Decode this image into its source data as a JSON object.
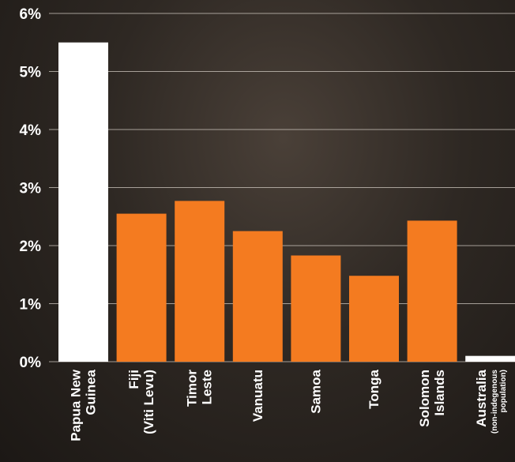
{
  "chart_data": {
    "type": "bar",
    "title": "",
    "xlabel": "",
    "ylabel": "",
    "ylim": [
      0,
      6
    ],
    "y_ticks": [
      "0%",
      "1%",
      "2%",
      "3%",
      "4%",
      "5%",
      "6%"
    ],
    "grid": true,
    "categories": [
      {
        "lines": [
          "Papua New",
          "Guinea"
        ],
        "sub": []
      },
      {
        "lines": [
          "Fiji",
          "(Viti Levu)"
        ],
        "sub": []
      },
      {
        "lines": [
          "Timor",
          "Leste"
        ],
        "sub": []
      },
      {
        "lines": [
          "Vanuatu"
        ],
        "sub": []
      },
      {
        "lines": [
          "Samoa"
        ],
        "sub": []
      },
      {
        "lines": [
          "Tonga"
        ],
        "sub": []
      },
      {
        "lines": [
          "Solomon",
          "Islands"
        ],
        "sub": []
      },
      {
        "lines": [
          "Australia"
        ],
        "sub": [
          "(non-indegenous",
          "population)"
        ]
      }
    ],
    "values": [
      5.5,
      2.55,
      2.77,
      2.25,
      1.83,
      1.48,
      2.43,
      0.1
    ],
    "colors": [
      "#ffffff",
      "#f47b20",
      "#f47b20",
      "#f47b20",
      "#f47b20",
      "#f47b20",
      "#f47b20",
      "#ffffff"
    ],
    "grid_color": "#cfc8c0",
    "text_color": "#ffffff"
  }
}
